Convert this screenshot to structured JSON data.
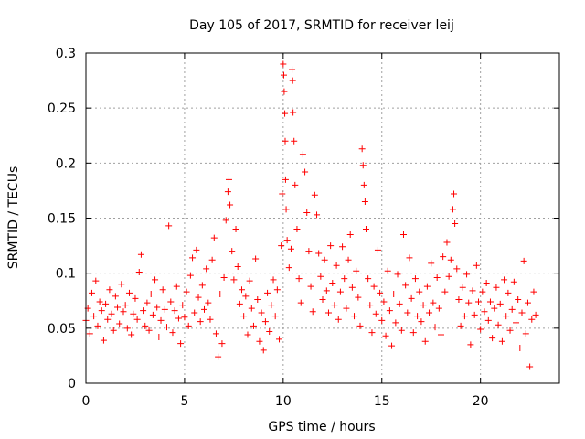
{
  "chart_data": {
    "type": "scatter",
    "title": "Day 105 of 2017, SRMTID for receiver leij",
    "xlabel": "GPS time / hours",
    "ylabel": "SRMTID / TECUs",
    "xlim": [
      0,
      24
    ],
    "ylim": [
      0,
      0.3
    ],
    "xticks": [
      0,
      5,
      10,
      15,
      20
    ],
    "xtick_labels": [
      "0",
      "5",
      "10",
      "15",
      "20"
    ],
    "yticks": [
      0,
      0.05,
      0.1,
      0.15,
      0.2,
      0.25,
      0.3
    ],
    "ytick_labels": [
      "0",
      "0.05",
      "0.1",
      "0.15",
      "0.2",
      "0.25",
      "0.3"
    ],
    "grid": true,
    "marker": "plus",
    "color": "#ff0000",
    "series": [
      {
        "name": "SRMTID",
        "points": [
          [
            0.0,
            0.057
          ],
          [
            0.1,
            0.068
          ],
          [
            0.2,
            0.045
          ],
          [
            0.3,
            0.082
          ],
          [
            0.4,
            0.061
          ],
          [
            0.5,
            0.093
          ],
          [
            0.6,
            0.052
          ],
          [
            0.7,
            0.074
          ],
          [
            0.8,
            0.066
          ],
          [
            0.9,
            0.039
          ],
          [
            1.0,
            0.072
          ],
          [
            1.1,
            0.058
          ],
          [
            1.2,
            0.085
          ],
          [
            1.3,
            0.063
          ],
          [
            1.4,
            0.048
          ],
          [
            1.5,
            0.079
          ],
          [
            1.6,
            0.069
          ],
          [
            1.7,
            0.054
          ],
          [
            1.8,
            0.09
          ],
          [
            1.9,
            0.065
          ],
          [
            2.0,
            0.071
          ],
          [
            2.1,
            0.05
          ],
          [
            2.2,
            0.082
          ],
          [
            2.3,
            0.044
          ],
          [
            2.4,
            0.063
          ],
          [
            2.5,
            0.077
          ],
          [
            2.6,
            0.058
          ],
          [
            2.7,
            0.101
          ],
          [
            2.8,
            0.117
          ],
          [
            2.9,
            0.066
          ],
          [
            3.0,
            0.052
          ],
          [
            3.1,
            0.073
          ],
          [
            3.2,
            0.048
          ],
          [
            3.3,
            0.081
          ],
          [
            3.4,
            0.062
          ],
          [
            3.5,
            0.094
          ],
          [
            3.6,
            0.069
          ],
          [
            3.7,
            0.042
          ],
          [
            3.8,
            0.057
          ],
          [
            3.9,
            0.085
          ],
          [
            4.0,
            0.067
          ],
          [
            4.1,
            0.051
          ],
          [
            4.2,
            0.143
          ],
          [
            4.3,
            0.074
          ],
          [
            4.4,
            0.046
          ],
          [
            4.5,
            0.066
          ],
          [
            4.6,
            0.088
          ],
          [
            4.7,
            0.059
          ],
          [
            4.8,
            0.036
          ],
          [
            4.9,
            0.071
          ],
          [
            5.0,
            0.06
          ],
          [
            5.1,
            0.083
          ],
          [
            5.2,
            0.052
          ],
          [
            5.3,
            0.098
          ],
          [
            5.4,
            0.114
          ],
          [
            5.5,
            0.064
          ],
          [
            5.6,
            0.121
          ],
          [
            5.7,
            0.078
          ],
          [
            5.8,
            0.056
          ],
          [
            5.9,
            0.089
          ],
          [
            6.0,
            0.067
          ],
          [
            6.1,
            0.104
          ],
          [
            6.2,
            0.073
          ],
          [
            6.3,
            0.058
          ],
          [
            6.4,
            0.112
          ],
          [
            6.5,
            0.132
          ],
          [
            6.6,
            0.045
          ],
          [
            6.7,
            0.024
          ],
          [
            6.8,
            0.081
          ],
          [
            6.9,
            0.036
          ],
          [
            7.0,
            0.096
          ],
          [
            7.1,
            0.148
          ],
          [
            7.2,
            0.174
          ],
          [
            7.25,
            0.185
          ],
          [
            7.3,
            0.162
          ],
          [
            7.4,
            0.12
          ],
          [
            7.5,
            0.094
          ],
          [
            7.6,
            0.14
          ],
          [
            7.7,
            0.106
          ],
          [
            7.8,
            0.072
          ],
          [
            7.9,
            0.085
          ],
          [
            8.0,
            0.061
          ],
          [
            8.1,
            0.079
          ],
          [
            8.2,
            0.044
          ],
          [
            8.3,
            0.093
          ],
          [
            8.4,
            0.068
          ],
          [
            8.5,
            0.052
          ],
          [
            8.6,
            0.113
          ],
          [
            8.7,
            0.076
          ],
          [
            8.8,
            0.038
          ],
          [
            8.9,
            0.064
          ],
          [
            9.0,
            0.03
          ],
          [
            9.1,
            0.056
          ],
          [
            9.2,
            0.082
          ],
          [
            9.3,
            0.047
          ],
          [
            9.4,
            0.071
          ],
          [
            9.5,
            0.094
          ],
          [
            9.6,
            0.061
          ],
          [
            9.7,
            0.085
          ],
          [
            9.8,
            0.04
          ],
          [
            9.9,
            0.125
          ],
          [
            9.95,
            0.172
          ],
          [
            10.0,
            0.29
          ],
          [
            10.03,
            0.28
          ],
          [
            10.05,
            0.265
          ],
          [
            10.08,
            0.245
          ],
          [
            10.1,
            0.22
          ],
          [
            10.12,
            0.185
          ],
          [
            10.15,
            0.158
          ],
          [
            10.2,
            0.13
          ],
          [
            10.3,
            0.105
          ],
          [
            10.4,
            0.122
          ],
          [
            10.45,
            0.285
          ],
          [
            10.48,
            0.275
          ],
          [
            10.5,
            0.246
          ],
          [
            10.55,
            0.22
          ],
          [
            10.6,
            0.18
          ],
          [
            10.7,
            0.14
          ],
          [
            10.8,
            0.095
          ],
          [
            10.9,
            0.073
          ],
          [
            11.0,
            0.208
          ],
          [
            11.1,
            0.192
          ],
          [
            11.2,
            0.155
          ],
          [
            11.3,
            0.12
          ],
          [
            11.4,
            0.088
          ],
          [
            11.5,
            0.065
          ],
          [
            11.6,
            0.171
          ],
          [
            11.7,
            0.153
          ],
          [
            11.8,
            0.118
          ],
          [
            11.9,
            0.097
          ],
          [
            12.0,
            0.076
          ],
          [
            12.1,
            0.112
          ],
          [
            12.2,
            0.084
          ],
          [
            12.3,
            0.064
          ],
          [
            12.4,
            0.125
          ],
          [
            12.5,
            0.091
          ],
          [
            12.6,
            0.071
          ],
          [
            12.7,
            0.107
          ],
          [
            12.8,
            0.058
          ],
          [
            12.9,
            0.083
          ],
          [
            13.0,
            0.124
          ],
          [
            13.1,
            0.095
          ],
          [
            13.2,
            0.068
          ],
          [
            13.3,
            0.112
          ],
          [
            13.4,
            0.135
          ],
          [
            13.5,
            0.087
          ],
          [
            13.6,
            0.061
          ],
          [
            13.7,
            0.102
          ],
          [
            13.8,
            0.078
          ],
          [
            13.9,
            0.052
          ],
          [
            14.0,
            0.213
          ],
          [
            14.05,
            0.198
          ],
          [
            14.1,
            0.18
          ],
          [
            14.15,
            0.165
          ],
          [
            14.2,
            0.14
          ],
          [
            14.3,
            0.095
          ],
          [
            14.4,
            0.071
          ],
          [
            14.5,
            0.046
          ],
          [
            14.6,
            0.088
          ],
          [
            14.7,
            0.063
          ],
          [
            14.8,
            0.121
          ],
          [
            14.9,
            0.082
          ],
          [
            15.0,
            0.057
          ],
          [
            15.1,
            0.074
          ],
          [
            15.2,
            0.043
          ],
          [
            15.3,
            0.102
          ],
          [
            15.4,
            0.066
          ],
          [
            15.5,
            0.034
          ],
          [
            15.6,
            0.081
          ],
          [
            15.7,
            0.055
          ],
          [
            15.8,
            0.099
          ],
          [
            15.9,
            0.072
          ],
          [
            16.0,
            0.048
          ],
          [
            16.1,
            0.135
          ],
          [
            16.2,
            0.089
          ],
          [
            16.3,
            0.064
          ],
          [
            16.4,
            0.114
          ],
          [
            16.5,
            0.077
          ],
          [
            16.6,
            0.046
          ],
          [
            16.7,
            0.095
          ],
          [
            16.8,
            0.061
          ],
          [
            16.9,
            0.083
          ],
          [
            17.0,
            0.056
          ],
          [
            17.1,
            0.071
          ],
          [
            17.2,
            0.038
          ],
          [
            17.3,
            0.088
          ],
          [
            17.4,
            0.064
          ],
          [
            17.5,
            0.109
          ],
          [
            17.6,
            0.073
          ],
          [
            17.7,
            0.051
          ],
          [
            17.8,
            0.096
          ],
          [
            17.9,
            0.068
          ],
          [
            18.0,
            0.044
          ],
          [
            18.1,
            0.115
          ],
          [
            18.2,
            0.083
          ],
          [
            18.3,
            0.128
          ],
          [
            18.4,
            0.097
          ],
          [
            18.5,
            0.112
          ],
          [
            18.6,
            0.158
          ],
          [
            18.65,
            0.172
          ],
          [
            18.7,
            0.145
          ],
          [
            18.8,
            0.104
          ],
          [
            18.9,
            0.076
          ],
          [
            19.0,
            0.052
          ],
          [
            19.1,
            0.087
          ],
          [
            19.2,
            0.061
          ],
          [
            19.3,
            0.099
          ],
          [
            19.4,
            0.073
          ],
          [
            19.5,
            0.035
          ],
          [
            19.6,
            0.084
          ],
          [
            19.7,
            0.062
          ],
          [
            19.8,
            0.107
          ],
          [
            19.9,
            0.074
          ],
          [
            20.0,
            0.049
          ],
          [
            20.1,
            0.083
          ],
          [
            20.2,
            0.065
          ],
          [
            20.3,
            0.091
          ],
          [
            20.4,
            0.057
          ],
          [
            20.5,
            0.074
          ],
          [
            20.6,
            0.041
          ],
          [
            20.7,
            0.068
          ],
          [
            20.8,
            0.087
          ],
          [
            20.9,
            0.053
          ],
          [
            21.0,
            0.072
          ],
          [
            21.1,
            0.038
          ],
          [
            21.2,
            0.094
          ],
          [
            21.3,
            0.061
          ],
          [
            21.4,
            0.082
          ],
          [
            21.5,
            0.048
          ],
          [
            21.6,
            0.067
          ],
          [
            21.7,
            0.092
          ],
          [
            21.8,
            0.055
          ],
          [
            21.9,
            0.076
          ],
          [
            22.0,
            0.032
          ],
          [
            22.1,
            0.064
          ],
          [
            22.2,
            0.111
          ],
          [
            22.3,
            0.045
          ],
          [
            22.4,
            0.073
          ],
          [
            22.5,
            0.015
          ],
          [
            22.6,
            0.058
          ],
          [
            22.7,
            0.083
          ],
          [
            22.8,
            0.062
          ]
        ]
      }
    ]
  }
}
